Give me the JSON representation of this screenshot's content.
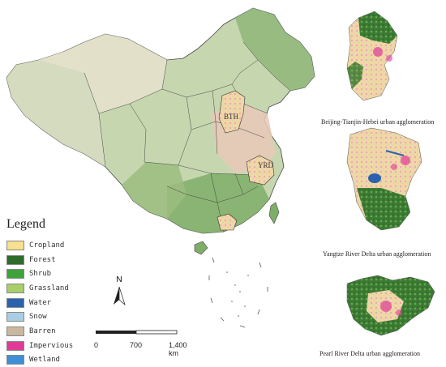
{
  "legend": {
    "title": "Legend",
    "items": [
      {
        "label": "Cropland",
        "color": "#f7e08f"
      },
      {
        "label": "Forest",
        "color": "#2f6b2a"
      },
      {
        "label": "Shrub",
        "color": "#3fa33a"
      },
      {
        "label": "Grassland",
        "color": "#a8cf6a"
      },
      {
        "label": "Water",
        "color": "#2a62b0"
      },
      {
        "label": "Snow",
        "color": "#a9cde5"
      },
      {
        "label": "Barren",
        "color": "#cbb79f"
      },
      {
        "label": "Impervious",
        "color": "#e03c97"
      },
      {
        "label": "Wetland",
        "color": "#3d8fd8"
      }
    ]
  },
  "north_arrow": {
    "letter": "N"
  },
  "scale_bar": {
    "labels": [
      "0",
      "700",
      "1,400 km"
    ]
  },
  "regions": {
    "bth": "BTH",
    "yrd": "YRD"
  },
  "insets": [
    {
      "caption": "Beijing-Tianjin-Hebei urban agglomeration"
    },
    {
      "caption": "Yangtze River Delta urban agglomeration"
    },
    {
      "caption": "Pearl River Delta urban agglomeration"
    }
  ]
}
